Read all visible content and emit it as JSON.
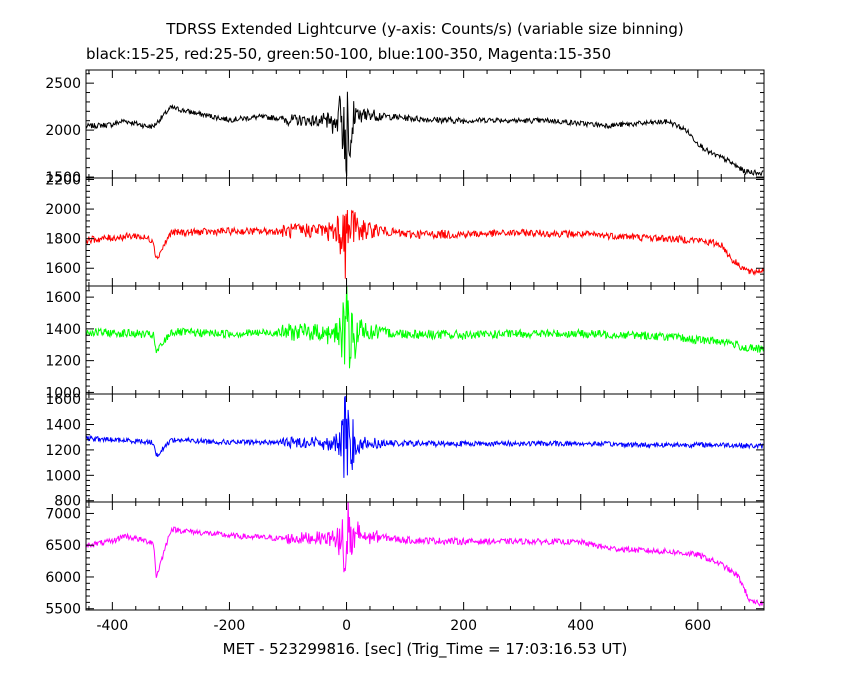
{
  "header": {
    "title": "TDRSS Extended Lightcurve (y-axis: Counts/s) (variable size binning)",
    "subtitle": "black:15-25, red:25-50, green:50-100, blue:100-350, Magenta:15-350"
  },
  "chart_data": {
    "type": "line",
    "title": "TDRSS Extended Lightcurve (y-axis: Counts/s) (variable size binning)",
    "subtitle": "black:15-25, red:25-50, green:50-100, blue:100-350, Magenta:15-350",
    "xlabel": "MET - 523299816. [sec] (Trig_Time = 17:03:16.53 UT)",
    "xlim": [
      -445,
      713
    ],
    "xticks": [
      -400,
      -200,
      0,
      200,
      400,
      600
    ],
    "grid": false,
    "panels": [
      {
        "name": "15-25",
        "color": "#000000",
        "ylim": [
          1490,
          2640
        ],
        "yticks": [
          1500,
          2000,
          2500
        ],
        "x": [
          -445,
          -400,
          -380,
          -340,
          -330,
          -300,
          -250,
          -200,
          -150,
          -120,
          -100,
          -60,
          -20,
          -10,
          0,
          10,
          20,
          40,
          60,
          100,
          150,
          200,
          250,
          300,
          350,
          400,
          450,
          500,
          550,
          580,
          600,
          620,
          650,
          680,
          713
        ],
        "values": [
          2040,
          2060,
          2100,
          2040,
          2040,
          2240,
          2170,
          2110,
          2140,
          2130,
          2110,
          2100,
          2090,
          2150,
          2000,
          2150,
          2140,
          2170,
          2150,
          2130,
          2110,
          2100,
          2110,
          2100,
          2100,
          2070,
          2050,
          2070,
          2090,
          2000,
          1860,
          1760,
          1680,
          1560,
          1540
        ],
        "noise": 28,
        "burst_amp": 480
      },
      {
        "name": "25-50",
        "color": "#ff0000",
        "ylim": [
          1480,
          2210
        ],
        "yticks": [
          1600,
          1800,
          2000,
          2200
        ],
        "x": [
          -445,
          -360,
          -330,
          -325,
          -300,
          -200,
          -100,
          -50,
          0,
          50,
          100,
          200,
          300,
          400,
          500,
          550,
          600,
          640,
          660,
          690,
          713
        ],
        "values": [
          1790,
          1820,
          1790,
          1660,
          1840,
          1850,
          1850,
          1860,
          1850,
          1860,
          1830,
          1830,
          1840,
          1830,
          1810,
          1800,
          1790,
          1760,
          1650,
          1570,
          1590
        ],
        "noise": 24,
        "burst_amp": 330
      },
      {
        "name": "50-100",
        "color": "#00ff00",
        "ylim": [
          990,
          1670
        ],
        "yticks": [
          1000,
          1200,
          1400,
          1600
        ],
        "x": [
          -445,
          -360,
          -330,
          -325,
          -300,
          -200,
          -100,
          -50,
          0,
          50,
          100,
          200,
          300,
          400,
          500,
          550,
          600,
          650,
          680,
          713
        ],
        "values": [
          1380,
          1370,
          1360,
          1250,
          1380,
          1370,
          1380,
          1380,
          1370,
          1380,
          1370,
          1360,
          1370,
          1370,
          1360,
          1350,
          1330,
          1320,
          1280,
          1270
        ],
        "noise": 26,
        "burst_amp": 370
      },
      {
        "name": "100-350",
        "color": "#0000ff",
        "ylim": [
          790,
          1640
        ],
        "yticks": [
          800,
          1000,
          1200,
          1400,
          1600
        ],
        "x": [
          -445,
          -360,
          -330,
          -325,
          -300,
          -200,
          -100,
          0,
          100,
          200,
          300,
          400,
          500,
          600,
          650,
          700,
          713
        ],
        "values": [
          1290,
          1270,
          1260,
          1150,
          1280,
          1260,
          1260,
          1260,
          1250,
          1250,
          1250,
          1250,
          1240,
          1240,
          1240,
          1230,
          1230
        ],
        "noise": 20,
        "burst_amp": 380
      },
      {
        "name": "15-350",
        "color": "#ff00ff",
        "ylim": [
          5480,
          7180
        ],
        "yticks": [
          5500,
          6000,
          6500,
          7000
        ],
        "x": [
          -445,
          -400,
          -380,
          -340,
          -330,
          -325,
          -300,
          -250,
          -200,
          -100,
          -50,
          0,
          50,
          100,
          200,
          300,
          400,
          450,
          500,
          550,
          600,
          640,
          670,
          690,
          713
        ],
        "values": [
          6500,
          6560,
          6650,
          6560,
          6550,
          6000,
          6750,
          6700,
          6650,
          6600,
          6620,
          6600,
          6640,
          6580,
          6560,
          6560,
          6550,
          6450,
          6420,
          6400,
          6350,
          6200,
          6000,
          5600,
          5580
        ],
        "noise": 45,
        "burst_amp": 800
      }
    ]
  }
}
